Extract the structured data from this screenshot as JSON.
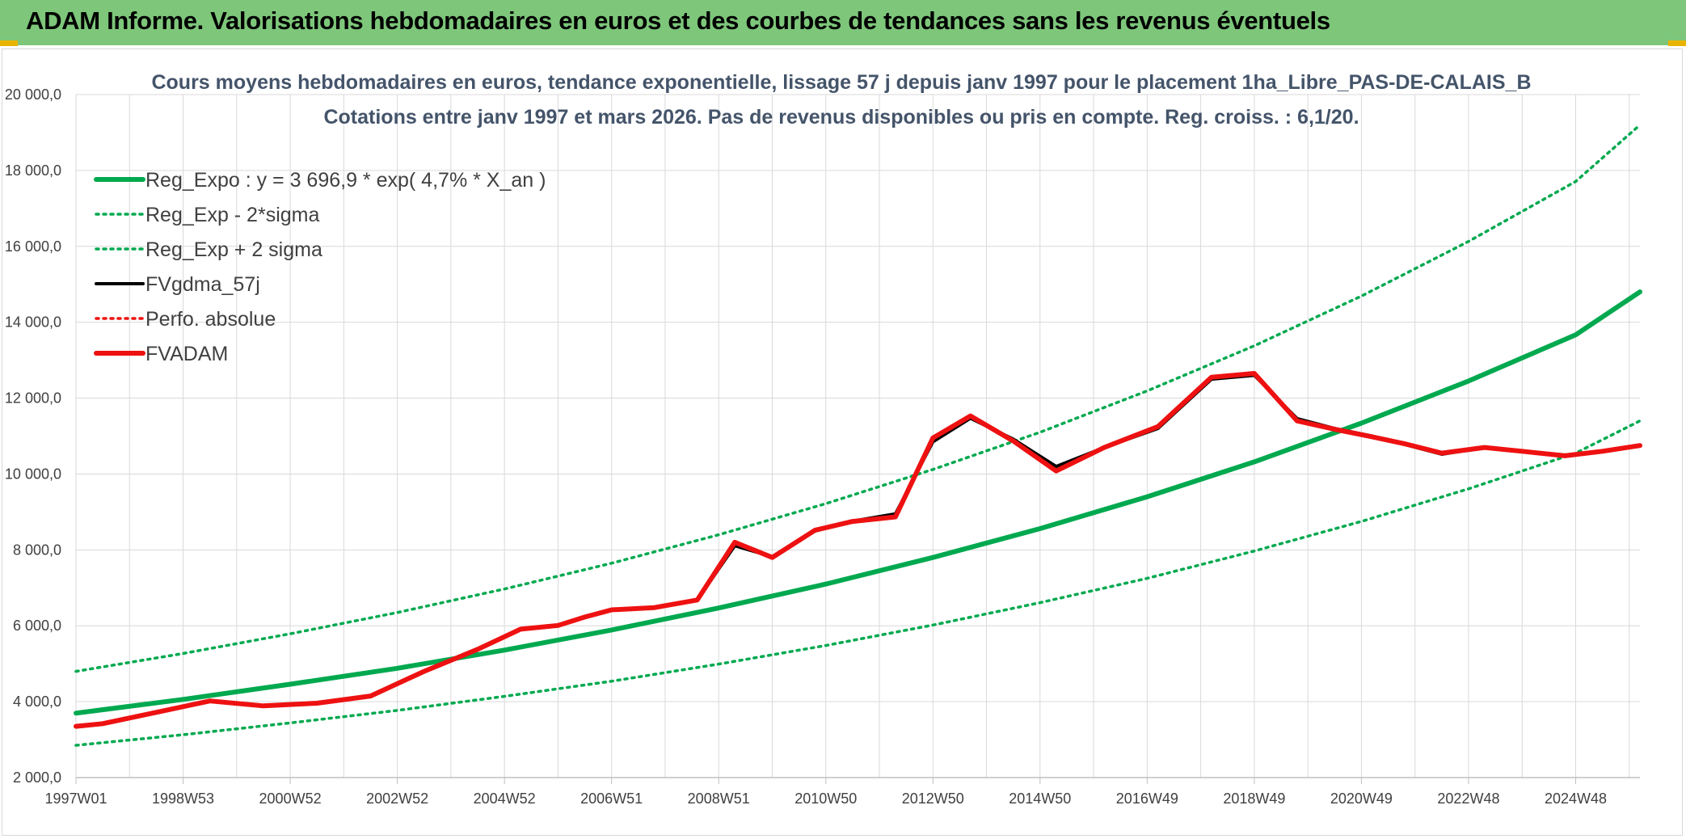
{
  "header": {
    "title": "ADAM Informe. Valorisations hebdomadaires en euros et des courbes de tendances sans les revenus éventuels"
  },
  "colors": {
    "green": "#00a94f",
    "red": "#ee1111",
    "black": "#000000",
    "grid": "#d9d9d9",
    "header_bg": "#7dc67a"
  },
  "chart_data": {
    "type": "line",
    "title": "Cours moyens hebdomadaires en euros, tendance exponentielle, lissage 57 j depuis janv 1997 pour le placement 1ha_Libre_PAS-DE-CALAIS_B",
    "subtitle": "Cotations entre janv 1997 et mars 2026. Pas de revenus disponibles ou pris en compte. Reg. croiss. : 6,1/20.",
    "xlabel": "",
    "ylabel": "",
    "ylim": [
      2000,
      20000
    ],
    "xlim": [
      1997.0,
      2026.2
    ],
    "grid": true,
    "legend_position": "top-left",
    "y_ticks": [
      "2 000,0",
      "4 000,0",
      "6 000,0",
      "8 000,0",
      "10 000,0",
      "12 000,0",
      "14 000,0",
      "16 000,0",
      "18 000,0",
      "20 000,0"
    ],
    "y_tick_values": [
      2000,
      4000,
      6000,
      8000,
      10000,
      12000,
      14000,
      16000,
      18000,
      20000
    ],
    "x_ticks": [
      "1997W01",
      "1998W53",
      "2000W52",
      "2002W52",
      "2004W52",
      "2006W51",
      "2008W51",
      "2010W50",
      "2012W50",
      "2014W50",
      "2016W49",
      "2018W49",
      "2020W49",
      "2022W48",
      "2024W48"
    ],
    "x_tick_values": [
      1997.0,
      1999.0,
      2001.0,
      2003.0,
      2005.0,
      2007.0,
      2009.0,
      2011.0,
      2013.0,
      2015.0,
      2017.0,
      2019.0,
      2021.0,
      2023.0,
      2025.0
    ],
    "series": [
      {
        "name": "Reg_Expo : y = 3 696,9 * exp( 4,7% *  X_an )",
        "color": "#00a94f",
        "style": "solid",
        "x": [
          1997.0,
          1999.0,
          2001.0,
          2003.0,
          2005.0,
          2007.0,
          2009.0,
          2011.0,
          2013.0,
          2015.0,
          2017.0,
          2019.0,
          2021.0,
          2023.0,
          2025.0,
          2026.2
        ],
        "y": [
          3697,
          4060,
          4460,
          4880,
          5360,
          5890,
          6470,
          7100,
          7800,
          8560,
          9400,
          10320,
          11340,
          12450,
          13670,
          14800
        ]
      },
      {
        "name": "Reg_Exp - 2*sigma",
        "color": "#00a94f",
        "style": "dotted",
        "x": [
          1997.0,
          1999.0,
          2001.0,
          2003.0,
          2005.0,
          2007.0,
          2009.0,
          2011.0,
          2013.0,
          2015.0,
          2017.0,
          2019.0,
          2021.0,
          2023.0,
          2025.0,
          2026.2
        ],
        "y": [
          2850,
          3130,
          3440,
          3770,
          4140,
          4540,
          4990,
          5480,
          6020,
          6610,
          7250,
          7970,
          8750,
          9610,
          10550,
          11400
        ]
      },
      {
        "name": "Reg_Exp + 2 sigma",
        "color": "#00a94f",
        "style": "dotted",
        "x": [
          1997.0,
          1999.0,
          2001.0,
          2003.0,
          2005.0,
          2007.0,
          2009.0,
          2011.0,
          2013.0,
          2015.0,
          2017.0,
          2019.0,
          2021.0,
          2023.0,
          2025.0,
          2026.2
        ],
        "y": [
          4800,
          5270,
          5790,
          6350,
          6970,
          7650,
          8400,
          9220,
          10120,
          11100,
          12190,
          13380,
          14690,
          16130,
          17710,
          19200
        ]
      },
      {
        "name": "FVgdma_57j",
        "color": "#000000",
        "style": "solid-thin",
        "x": [
          1997.0,
          1997.5,
          1998.5,
          1999.5,
          2000.5,
          2001.5,
          2002.5,
          2003.5,
          2004.5,
          2005.3,
          2006.0,
          2006.5,
          2007.0,
          2007.8,
          2008.6,
          2009.3,
          2010.0,
          2010.8,
          2011.5,
          2012.3,
          2013.0,
          2013.7,
          2014.5,
          2015.3,
          2016.2,
          2017.2,
          2018.2,
          2019.0,
          2019.8,
          2020.5,
          2021.2,
          2021.8,
          2022.5,
          2023.3,
          2024.0,
          2024.8,
          2025.5,
          2026.2
        ],
        "y": [
          3350,
          3420,
          3720,
          4020,
          3890,
          3960,
          4150,
          4800,
          5380,
          5910,
          6010,
          6230,
          6420,
          6480,
          6680,
          8110,
          7820,
          8500,
          8760,
          8950,
          10850,
          11470,
          10920,
          10200,
          10700,
          11200,
          12500,
          12600,
          11460,
          11200,
          11000,
          10780,
          10520,
          10700,
          10600,
          10500,
          10600,
          10750
        ]
      },
      {
        "name": "Perfo. absolue",
        "color": "#ee1111",
        "style": "dotted",
        "x": [],
        "y": []
      },
      {
        "name": "FVADAM",
        "color": "#ee1111",
        "style": "solid",
        "x": [
          1997.0,
          1997.5,
          1998.5,
          1999.5,
          2000.5,
          2001.5,
          2002.5,
          2003.5,
          2004.5,
          2005.3,
          2006.0,
          2006.5,
          2007.0,
          2007.8,
          2008.6,
          2009.3,
          2010.0,
          2010.8,
          2011.5,
          2012.3,
          2013.0,
          2013.7,
          2014.5,
          2015.3,
          2016.2,
          2017.2,
          2018.2,
          2019.0,
          2019.8,
          2020.5,
          2021.2,
          2021.8,
          2022.5,
          2023.3,
          2024.0,
          2024.8,
          2025.5,
          2026.2
        ],
        "y": [
          3350,
          3420,
          3720,
          4020,
          3890,
          3960,
          4150,
          4800,
          5380,
          5910,
          6010,
          6230,
          6420,
          6480,
          6680,
          8200,
          7800,
          8520,
          8750,
          8870,
          10950,
          11530,
          10870,
          10080,
          10700,
          11250,
          12550,
          12650,
          11400,
          11180,
          10980,
          10800,
          10550,
          10700,
          10600,
          10480,
          10600,
          10750
        ]
      }
    ]
  }
}
